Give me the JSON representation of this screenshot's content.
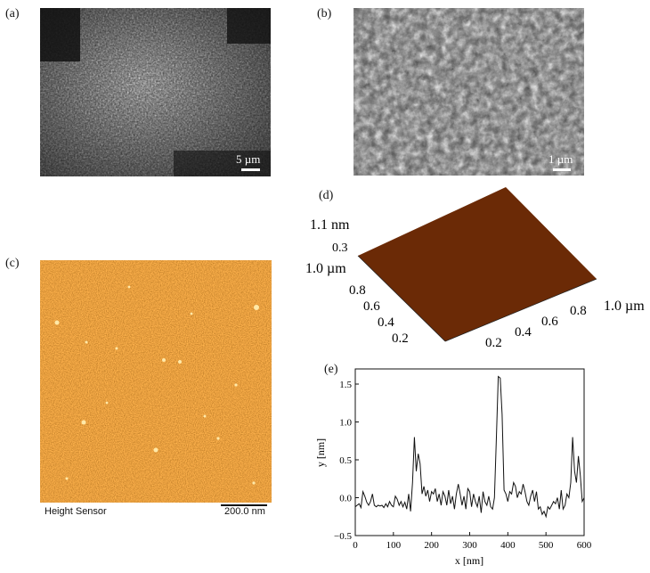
{
  "panels": {
    "a": {
      "letter": "(a)",
      "scale": "5 µm"
    },
    "b": {
      "letter": "(b)",
      "scale": "1 µm"
    },
    "c": {
      "letter": "(c)",
      "caption": "Height Sensor",
      "scale": "200.0 nm"
    },
    "d": {
      "letter": "(d)",
      "z_max": "1.1 nm",
      "z_tick": "0.3",
      "y_label": "1.0 µm",
      "y_ticks": [
        "0.8",
        "0.6",
        "0.4",
        "0.2"
      ],
      "x_ticks": [
        "0.2",
        "0.4",
        "0.6",
        "0.8"
      ],
      "x_label": "1.0 µm"
    },
    "e": {
      "letter": "(e)"
    }
  },
  "chart_data": {
    "type": "line",
    "xlabel": "x [nm]",
    "ylabel": "y [nm]",
    "xlim": [
      0,
      600
    ],
    "ylim": [
      -0.5,
      1.7
    ],
    "xticks": [
      0,
      100,
      200,
      300,
      400,
      500,
      600
    ],
    "yticks": [
      -0.5,
      0.0,
      0.5,
      1.0,
      1.5
    ],
    "ytick_labels": [
      "−0.5",
      "0.0",
      "0.5",
      "1.0",
      "1.5"
    ],
    "x": [
      0,
      5,
      10,
      15,
      20,
      25,
      30,
      35,
      40,
      45,
      50,
      55,
      60,
      65,
      70,
      75,
      80,
      85,
      90,
      95,
      100,
      105,
      110,
      115,
      120,
      125,
      130,
      135,
      140,
      145,
      150,
      155,
      160,
      165,
      170,
      175,
      180,
      185,
      190,
      195,
      200,
      205,
      210,
      215,
      220,
      225,
      230,
      235,
      240,
      245,
      250,
      255,
      260,
      265,
      270,
      275,
      280,
      285,
      290,
      295,
      300,
      305,
      310,
      315,
      320,
      325,
      330,
      335,
      340,
      345,
      350,
      355,
      360,
      365,
      370,
      375,
      380,
      385,
      390,
      395,
      400,
      405,
      410,
      415,
      420,
      425,
      430,
      435,
      440,
      445,
      450,
      455,
      460,
      465,
      470,
      475,
      480,
      485,
      490,
      495,
      500,
      505,
      510,
      515,
      520,
      525,
      530,
      535,
      540,
      545,
      550,
      555,
      560,
      565,
      570,
      575,
      580,
      585,
      590,
      595,
      600
    ],
    "y": [
      -0.12,
      -0.1,
      -0.08,
      -0.13,
      0.08,
      0.02,
      -0.06,
      -0.1,
      -0.05,
      0.05,
      -0.1,
      -0.12,
      -0.1,
      -0.11,
      -0.1,
      -0.13,
      -0.08,
      -0.12,
      -0.05,
      -0.1,
      -0.12,
      0.02,
      -0.02,
      -0.1,
      -0.05,
      -0.12,
      -0.06,
      -0.15,
      0.05,
      -0.18,
      0.2,
      0.8,
      0.35,
      0.58,
      0.45,
      0.05,
      0.15,
      0.02,
      0.1,
      -0.05,
      0.08,
      0.05,
      0.12,
      -0.05,
      0.05,
      -0.1,
      0.08,
      0.02,
      -0.1,
      0.1,
      -0.08,
      0.02,
      -0.15,
      0.05,
      0.18,
      0.05,
      -0.1,
      0.02,
      -0.15,
      0.12,
      0.08,
      -0.12,
      0.05,
      -0.05,
      -0.12,
      0.02,
      -0.2,
      0.08,
      -0.05,
      -0.1,
      0.02,
      -0.12,
      -0.15,
      0.0,
      0.8,
      1.6,
      1.58,
      1.1,
      0.1,
      0.05,
      -0.05,
      0.08,
      0.05,
      0.2,
      0.15,
      0.0,
      0.08,
      0.05,
      0.18,
      0.08,
      -0.05,
      -0.1,
      0.02,
      0.1,
      -0.05,
      0.08,
      -0.15,
      -0.12,
      -0.22,
      -0.18,
      -0.25,
      -0.12,
      -0.15,
      -0.1,
      -0.05,
      -0.08,
      0.0,
      -0.15,
      0.1,
      -0.15,
      -0.1,
      0.05,
      0.0,
      0.2,
      0.8,
      0.35,
      0.2,
      0.55,
      0.3,
      -0.05,
      0.0
    ]
  }
}
